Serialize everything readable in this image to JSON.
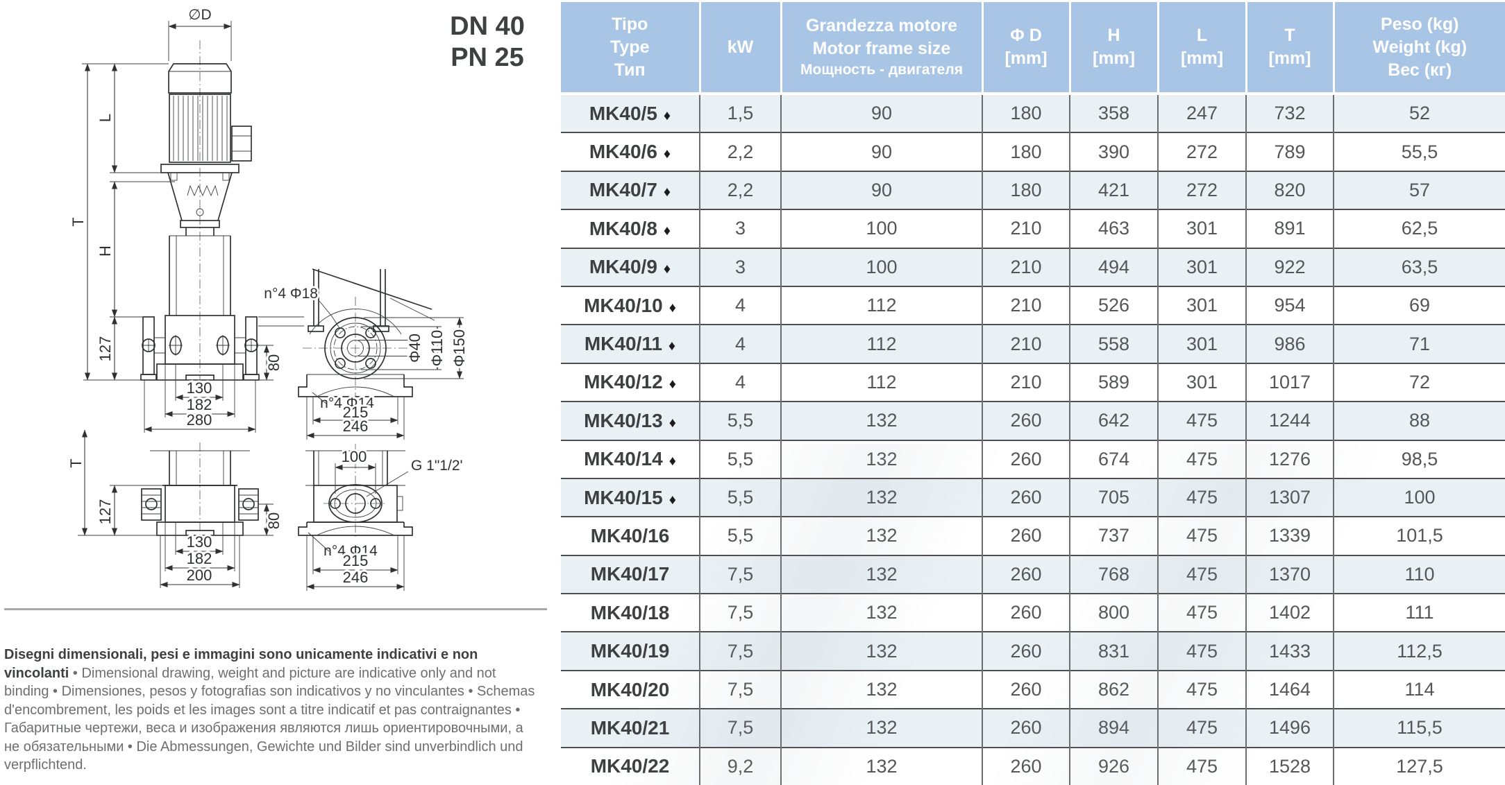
{
  "page": {
    "dn": "DN 40",
    "pn": "PN 25"
  },
  "drawing": {
    "labels": {
      "phiD": "∅D",
      "T": "T",
      "L": "L",
      "H": "H",
      "d127": "127",
      "d80": "80",
      "d130": "130",
      "d182": "182",
      "d280": "280",
      "d200": "200",
      "d215": "215",
      "d246": "246",
      "d100": "100",
      "n4phi18": "n°4 Φ18",
      "n4phi14": "n°4 Φ14",
      "phi40": "Φ40",
      "phi110": "Φ110",
      "phi150": "Φ150",
      "g_thread": "G 1\"1/2'"
    }
  },
  "disclaimer": {
    "bold": "Disegni dimensionali, pesi e immagini sono unicamente indicativi e non vincolanti",
    "rest": " • Dimensional drawing, weight and picture are indicative only and not binding • Dimensiones, pesos y fotografias son indicativos y no vinculantes • Schemas d'encombrement, les poids et les images sont a titre indicatif et pas contraignantes • Габаритные чертежи, веса и изображения являются лишь ориентировочными, а не обязательными • Die Abmessungen, Gewichte und Bilder sind unverbindlich und verpflichtend."
  },
  "table": {
    "diamond_symbol": "♦",
    "header": {
      "tipo": [
        "Tipo",
        "Type",
        "Тип"
      ],
      "kw": "kW",
      "frame": [
        "Grandezza motore",
        "Motor frame size",
        "Мощность - двигателя"
      ],
      "phid": [
        "Φ D",
        "[mm]"
      ],
      "h": [
        "H",
        "[mm]"
      ],
      "l": [
        "L",
        "[mm]"
      ],
      "t": [
        "T",
        "[mm]"
      ],
      "peso": [
        "Peso (kg)",
        "Weight (kg)",
        "Вес (кг)"
      ]
    },
    "rows": [
      {
        "type": "MK40/5",
        "diamond": true,
        "kw": "1,5",
        "frame": "90",
        "phid": "180",
        "h": "358",
        "l": "247",
        "t": "732",
        "peso": "52"
      },
      {
        "type": "MK40/6",
        "diamond": true,
        "kw": "2,2",
        "frame": "90",
        "phid": "180",
        "h": "390",
        "l": "272",
        "t": "789",
        "peso": "55,5"
      },
      {
        "type": "MK40/7",
        "diamond": true,
        "kw": "2,2",
        "frame": "90",
        "phid": "180",
        "h": "421",
        "l": "272",
        "t": "820",
        "peso": "57"
      },
      {
        "type": "MK40/8",
        "diamond": true,
        "kw": "3",
        "frame": "100",
        "phid": "210",
        "h": "463",
        "l": "301",
        "t": "891",
        "peso": "62,5"
      },
      {
        "type": "MK40/9",
        "diamond": true,
        "kw": "3",
        "frame": "100",
        "phid": "210",
        "h": "494",
        "l": "301",
        "t": "922",
        "peso": "63,5"
      },
      {
        "type": "MK40/10",
        "diamond": true,
        "kw": "4",
        "frame": "112",
        "phid": "210",
        "h": "526",
        "l": "301",
        "t": "954",
        "peso": "69"
      },
      {
        "type": "MK40/11",
        "diamond": true,
        "kw": "4",
        "frame": "112",
        "phid": "210",
        "h": "558",
        "l": "301",
        "t": "986",
        "peso": "71"
      },
      {
        "type": "MK40/12",
        "diamond": true,
        "kw": "4",
        "frame": "112",
        "phid": "210",
        "h": "589",
        "l": "301",
        "t": "1017",
        "peso": "72"
      },
      {
        "type": "MK40/13",
        "diamond": true,
        "kw": "5,5",
        "frame": "132",
        "phid": "260",
        "h": "642",
        "l": "475",
        "t": "1244",
        "peso": "88"
      },
      {
        "type": "MK40/14",
        "diamond": true,
        "kw": "5,5",
        "frame": "132",
        "phid": "260",
        "h": "674",
        "l": "475",
        "t": "1276",
        "peso": "98,5"
      },
      {
        "type": "MK40/15",
        "diamond": true,
        "kw": "5,5",
        "frame": "132",
        "phid": "260",
        "h": "705",
        "l": "475",
        "t": "1307",
        "peso": "100"
      },
      {
        "type": "MK40/16",
        "diamond": false,
        "kw": "5,5",
        "frame": "132",
        "phid": "260",
        "h": "737",
        "l": "475",
        "t": "1339",
        "peso": "101,5"
      },
      {
        "type": "MK40/17",
        "diamond": false,
        "kw": "7,5",
        "frame": "132",
        "phid": "260",
        "h": "768",
        "l": "475",
        "t": "1370",
        "peso": "110"
      },
      {
        "type": "MK40/18",
        "diamond": false,
        "kw": "7,5",
        "frame": "132",
        "phid": "260",
        "h": "800",
        "l": "475",
        "t": "1402",
        "peso": "111"
      },
      {
        "type": "MK40/19",
        "diamond": false,
        "kw": "7,5",
        "frame": "132",
        "phid": "260",
        "h": "831",
        "l": "475",
        "t": "1433",
        "peso": "112,5"
      },
      {
        "type": "MK40/20",
        "diamond": false,
        "kw": "7,5",
        "frame": "132",
        "phid": "260",
        "h": "862",
        "l": "475",
        "t": "1464",
        "peso": "114"
      },
      {
        "type": "MK40/21",
        "diamond": false,
        "kw": "7,5",
        "frame": "132",
        "phid": "260",
        "h": "894",
        "l": "475",
        "t": "1496",
        "peso": "115,5"
      },
      {
        "type": "MK40/22",
        "diamond": false,
        "kw": "9,2",
        "frame": "132",
        "phid": "260",
        "h": "926",
        "l": "475",
        "t": "1528",
        "peso": "127,5"
      }
    ]
  }
}
